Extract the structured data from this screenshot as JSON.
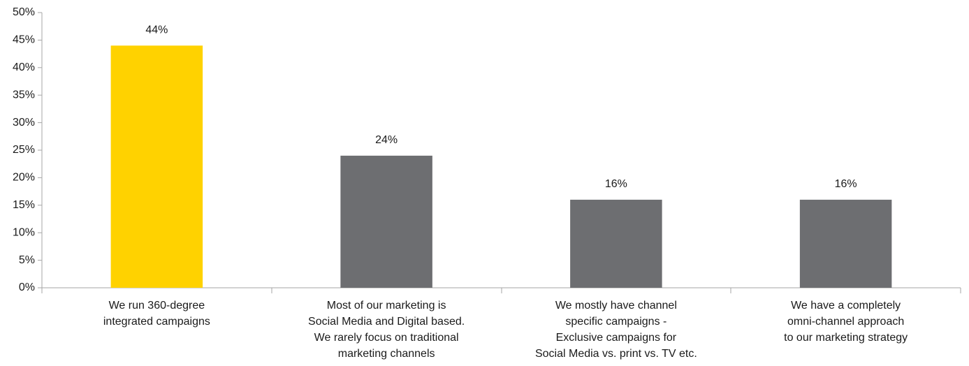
{
  "chart_data": {
    "type": "bar",
    "categories": [
      [
        "We run 360-degree",
        "integrated campaigns"
      ],
      [
        "Most of our marketing is",
        "Social Media and Digital based.",
        "We rarely focus on traditional",
        "marketing channels"
      ],
      [
        "We mostly have channel",
        "specific campaigns -",
        "Exclusive campaigns for",
        "Social Media vs. print vs. TV etc."
      ],
      [
        "We have a completely",
        "omni-channel approach",
        "to our marketing strategy"
      ]
    ],
    "values": [
      44,
      24,
      16,
      16
    ],
    "value_labels": [
      "44%",
      "24%",
      "16%",
      "16%"
    ],
    "colors": [
      "#ffd200",
      "#6d6e71",
      "#6d6e71",
      "#6d6e71"
    ],
    "ylim": [
      0,
      50
    ],
    "yticks": [
      {
        "value": 0,
        "label": "0%"
      },
      {
        "value": 5,
        "label": "5%"
      },
      {
        "value": 10,
        "label": "10%"
      },
      {
        "value": 15,
        "label": "15%"
      },
      {
        "value": 20,
        "label": "20%"
      },
      {
        "value": 25,
        "label": "25%"
      },
      {
        "value": 30,
        "label": "30%"
      },
      {
        "value": 35,
        "label": "35%"
      },
      {
        "value": 40,
        "label": "40%"
      },
      {
        "value": 45,
        "label": "45%"
      },
      {
        "value": 50,
        "label": "50%"
      }
    ],
    "grid": false
  }
}
